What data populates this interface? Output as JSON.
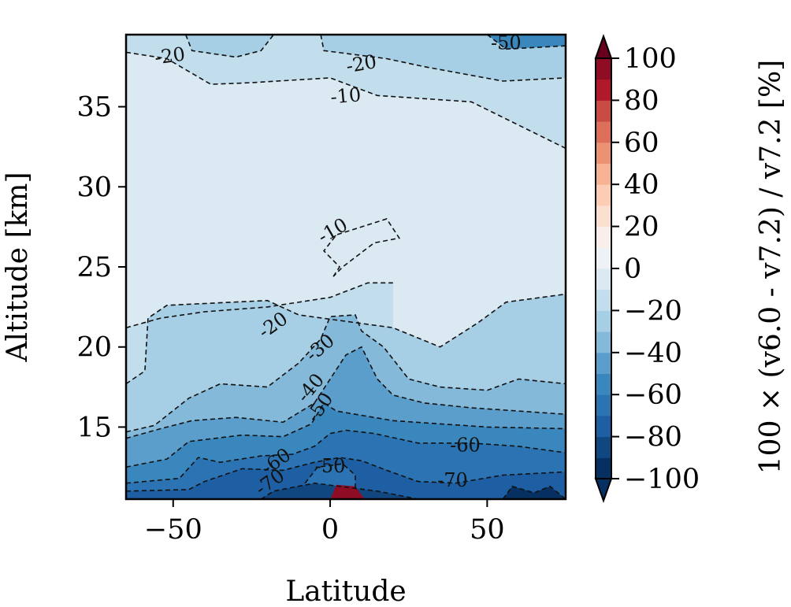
{
  "chart_data": {
    "type": "contour",
    "xlabel": "Latitude",
    "ylabel": "Altitude [km]",
    "xlim": [
      -65,
      75
    ],
    "ylim": [
      10.5,
      39.5
    ],
    "x_ticks": [
      -50,
      0,
      50
    ],
    "x_tick_labels": [
      "−50",
      "0",
      "50"
    ],
    "y_ticks": [
      15,
      20,
      25,
      30,
      35
    ],
    "y_tick_labels": [
      "15",
      "20",
      "25",
      "30",
      "35"
    ],
    "colorbar": {
      "label": "100 × (v6.0 - v7.2) / v7.2 [%]",
      "range": [
        -100,
        100
      ],
      "step": 10,
      "extend": "both",
      "ticks": [
        100,
        80,
        60,
        40,
        20,
        0,
        -20,
        -40,
        -60,
        -80,
        -100
      ],
      "tick_labels": [
        "100",
        "80",
        "60",
        "40",
        "20",
        "0",
        "−20",
        "−40",
        "−60",
        "−80",
        "−100"
      ],
      "colors": [
        "#053061",
        "#114781",
        "#1d5fa2",
        "#2b73b3",
        "#3a87bd",
        "#5c9ecb",
        "#85b9d9",
        "#a6cee4",
        "#c2ddec",
        "#dae9f2",
        "#eef2f6",
        "#f8eeea",
        "#fbe0d2",
        "#fcccb4",
        "#f6b293",
        "#eb9174",
        "#db6f59",
        "#c84c43",
        "#b2182b",
        "#8e0d25",
        "#67001f"
      ],
      "under_color": "#053061",
      "over_color": "#67001f"
    },
    "contours": [
      {
        "level": -20,
        "points": [
          [
            -46,
            39.5
          ],
          [
            -44,
            38.5
          ],
          [
            -30,
            38.1
          ],
          [
            -22,
            38.5
          ],
          [
            -18,
            39.5
          ]
        ]
      },
      {
        "level": -20,
        "points": [
          [
            -3,
            39.5
          ],
          [
            -2,
            38.5
          ],
          [
            18,
            38
          ],
          [
            30,
            37.5
          ],
          [
            55,
            36.6
          ],
          [
            75,
            36.8
          ]
        ]
      },
      {
        "level": -50,
        "points": [
          [
            50,
            39.5
          ],
          [
            56,
            38.6
          ],
          [
            75,
            38.8
          ]
        ]
      },
      {
        "level": -10,
        "points": [
          [
            -65,
            38.4
          ],
          [
            -52,
            38
          ],
          [
            -38,
            36.4
          ],
          [
            -25,
            36.5
          ],
          [
            0,
            36.8
          ],
          [
            15,
            35.7
          ],
          [
            45,
            35.3
          ],
          [
            75,
            32.4
          ]
        ]
      },
      {
        "level": -10,
        "points": [
          [
            -65,
            21.2
          ],
          [
            -54,
            21.8
          ],
          [
            -40,
            22.2
          ],
          [
            -20,
            22.5
          ],
          [
            0,
            23.1
          ],
          [
            12,
            24
          ],
          [
            20,
            24
          ]
        ]
      },
      {
        "level": -10,
        "points": [
          [
            1,
            24.4
          ],
          [
            3,
            25
          ],
          [
            -2,
            26
          ],
          [
            2,
            27
          ],
          [
            18,
            28
          ],
          [
            22,
            26.8
          ],
          [
            14,
            26.5
          ],
          [
            4,
            25
          ],
          [
            1,
            24.4
          ]
        ]
      },
      {
        "level": -20,
        "points": [
          [
            -65,
            17.7
          ],
          [
            -59,
            18.5
          ],
          [
            -58,
            21.8
          ],
          [
            -52,
            22.6
          ],
          [
            -20,
            22.9
          ],
          [
            -10,
            22
          ],
          [
            20,
            21.2
          ],
          [
            35,
            20
          ],
          [
            47,
            21.5
          ],
          [
            56,
            22.8
          ],
          [
            75,
            23.3
          ]
        ]
      },
      {
        "level": -30,
        "points": [
          [
            -65,
            14.7
          ],
          [
            -56,
            15.1
          ],
          [
            -45,
            16.8
          ],
          [
            -35,
            17.7
          ],
          [
            -20,
            17.5
          ],
          [
            -10,
            19
          ],
          [
            -3,
            20.5
          ],
          [
            0,
            21.9
          ],
          [
            8,
            22
          ],
          [
            10,
            21
          ],
          [
            17,
            20
          ],
          [
            25,
            18
          ],
          [
            35,
            17.5
          ],
          [
            50,
            17.3
          ],
          [
            60,
            18
          ],
          [
            75,
            17.7
          ]
        ]
      },
      {
        "level": -40,
        "points": [
          [
            -65,
            14.3
          ],
          [
            -54,
            14.9
          ],
          [
            -44,
            15.4
          ],
          [
            -30,
            15.6
          ],
          [
            -15,
            15.3
          ],
          [
            -5,
            16.5
          ],
          [
            0,
            18
          ],
          [
            5,
            19.5
          ],
          [
            10,
            20
          ],
          [
            15,
            18
          ],
          [
            20,
            17
          ],
          [
            30,
            16.5
          ],
          [
            45,
            16.2
          ],
          [
            60,
            16
          ],
          [
            75,
            15.8
          ]
        ]
      },
      {
        "level": -50,
        "points": [
          [
            -65,
            12.5
          ],
          [
            -52,
            13
          ],
          [
            -45,
            14.1
          ],
          [
            -28,
            14.5
          ],
          [
            -15,
            14.4
          ],
          [
            -6,
            15.2
          ],
          [
            -2,
            16.5
          ],
          [
            2,
            16
          ],
          [
            8,
            15.8
          ],
          [
            20,
            15.4
          ],
          [
            35,
            15.2
          ],
          [
            50,
            15
          ],
          [
            75,
            14.9
          ]
        ]
      },
      {
        "level": -60,
        "points": [
          [
            -65,
            11.5
          ],
          [
            -48,
            11.8
          ],
          [
            -42,
            13.1
          ],
          [
            -35,
            12.8
          ],
          [
            -22,
            13.2
          ],
          [
            -12,
            13.3
          ],
          [
            -5,
            13.8
          ],
          [
            0,
            14.6
          ],
          [
            5,
            14.8
          ],
          [
            14,
            14.6
          ],
          [
            28,
            14
          ],
          [
            45,
            14
          ],
          [
            60,
            13.8
          ],
          [
            75,
            13.4
          ]
        ]
      },
      {
        "level": -70,
        "points": [
          [
            -65,
            11
          ],
          [
            -45,
            11.1
          ],
          [
            -40,
            11.6
          ],
          [
            -28,
            12.4
          ],
          [
            -15,
            12.3
          ],
          [
            -5,
            12.8
          ],
          [
            3,
            13.1
          ],
          [
            10,
            12.9
          ],
          [
            18,
            12.3
          ],
          [
            28,
            11.6
          ],
          [
            40,
            11.5
          ],
          [
            55,
            12
          ],
          [
            75,
            12.2
          ]
        ]
      },
      {
        "level": -60,
        "points": [
          [
            -8,
            11.5
          ],
          [
            -4,
            12.5
          ],
          [
            4,
            12.7
          ],
          [
            8,
            12
          ],
          [
            8,
            11.2
          ]
        ]
      },
      {
        "level": -80,
        "points": [
          [
            -22,
            10.5
          ],
          [
            -18,
            11
          ],
          [
            -5,
            11.5
          ],
          [
            15,
            11
          ],
          [
            28,
            10.5
          ]
        ]
      },
      {
        "level": -90,
        "points": [
          [
            55,
            10.5
          ],
          [
            58,
            11.3
          ],
          [
            65,
            10.9
          ],
          [
            70,
            11.3
          ],
          [
            75,
            10.5
          ]
        ]
      }
    ],
    "contour_labels": [
      {
        "text": "-20",
        "x": -51,
        "y": 38.1,
        "angle": -8
      },
      {
        "text": "-50",
        "x": 56,
        "y": 38.9,
        "angle": 0
      },
      {
        "text": "-20",
        "x": 10,
        "y": 37.6,
        "angle": -10
      },
      {
        "text": "-10",
        "x": 5,
        "y": 35.6,
        "angle": -5
      },
      {
        "text": "-10",
        "x": 1,
        "y": 27.2,
        "angle": -30
      },
      {
        "text": "-20",
        "x": -18,
        "y": 21.3,
        "angle": -35
      },
      {
        "text": "-30",
        "x": -3,
        "y": 19.9,
        "angle": -40
      },
      {
        "text": "-40",
        "x": -6,
        "y": 17.4,
        "angle": -50
      },
      {
        "text": "-50",
        "x": -3,
        "y": 16.2,
        "angle": -55
      },
      {
        "text": "-60",
        "x": 43,
        "y": 13.8,
        "angle": 0
      },
      {
        "text": "-60",
        "x": -17,
        "y": 12.8,
        "angle": -35
      },
      {
        "text": "-70",
        "x": -19,
        "y": 11.5,
        "angle": -35
      },
      {
        "text": "-50",
        "x": 0,
        "y": 12.5,
        "angle": 0
      },
      {
        "text": "-70",
        "x": 39,
        "y": 11.6,
        "angle": 0
      }
    ]
  }
}
